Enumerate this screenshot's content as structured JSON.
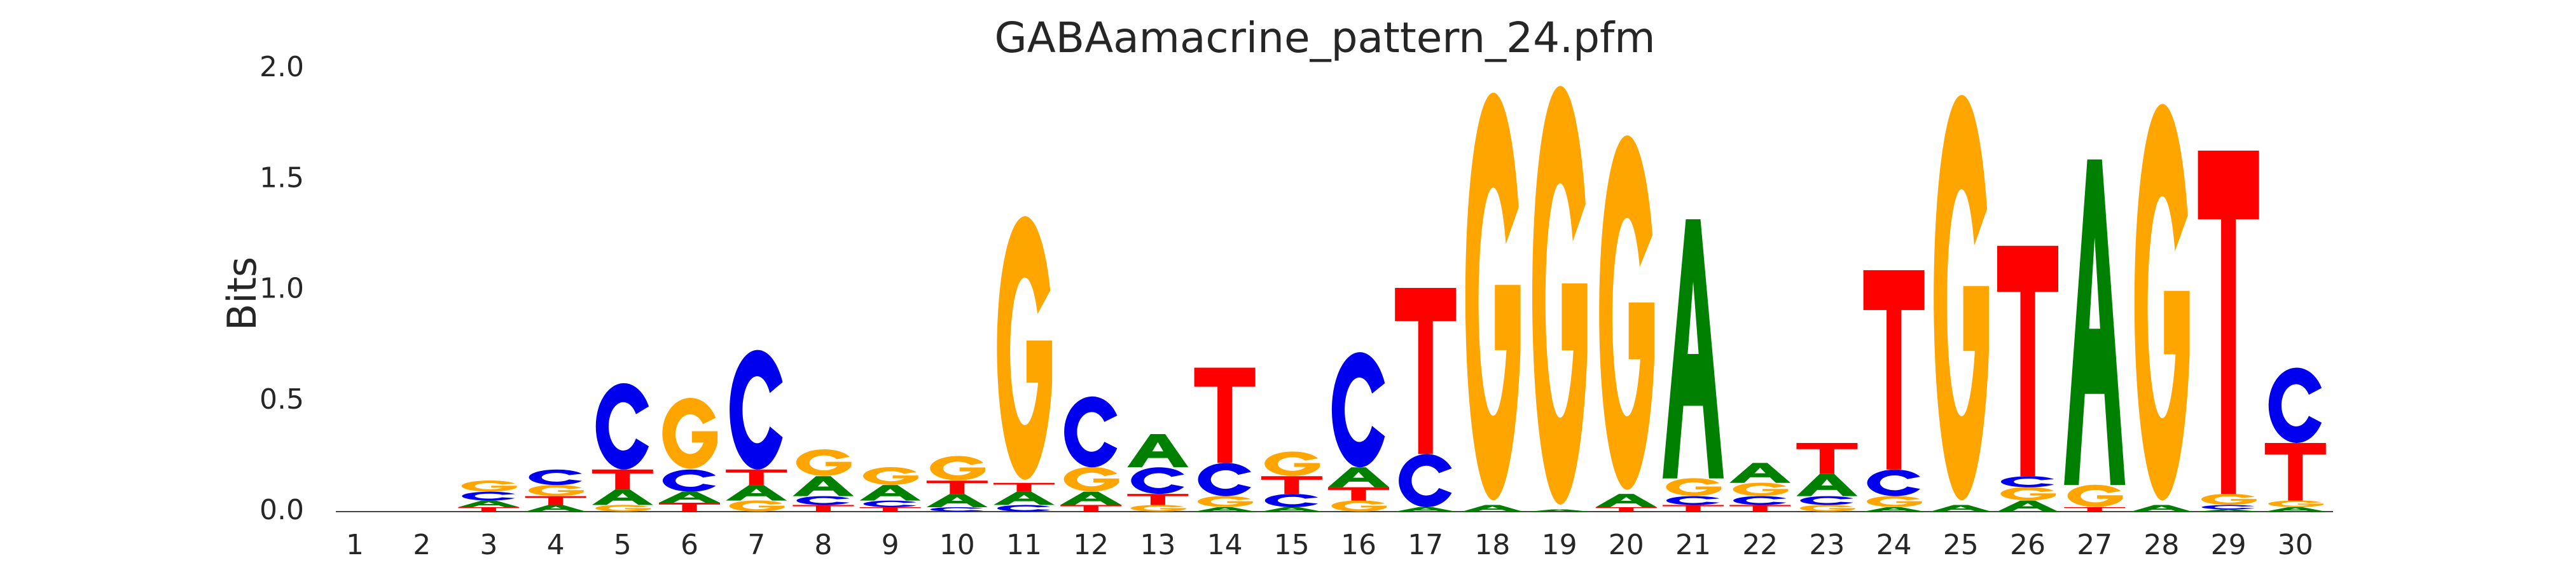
{
  "chart_data": {
    "type": "sequence_logo",
    "title": "GABAamacrine_pattern_24.pfm",
    "xlabel": "",
    "ylabel": "Bits",
    "ylim": [
      0,
      2.0
    ],
    "xticks": [
      1,
      2,
      3,
      4,
      5,
      6,
      7,
      8,
      9,
      10,
      11,
      12,
      13,
      14,
      15,
      16,
      17,
      18,
      19,
      20,
      21,
      22,
      23,
      24,
      25,
      26,
      27,
      28,
      29,
      30
    ],
    "yticks": [
      "0.0",
      "0.5",
      "1.0",
      "1.5",
      "2.0"
    ],
    "colors": {
      "A": "#008000",
      "C": "#0000ee",
      "G": "#ffa500",
      "T": "#ff0000"
    },
    "positions": [
      {
        "pos": 1,
        "letters": []
      },
      {
        "pos": 2,
        "letters": []
      },
      {
        "pos": 3,
        "letters": [
          [
            "T",
            0.02
          ],
          [
            "A",
            0.03
          ],
          [
            "C",
            0.04
          ],
          [
            "G",
            0.05
          ]
        ]
      },
      {
        "pos": 4,
        "letters": [
          [
            "A",
            0.03
          ],
          [
            "T",
            0.04
          ],
          [
            "G",
            0.05
          ],
          [
            "C",
            0.07
          ]
        ]
      },
      {
        "pos": 5,
        "letters": [
          [
            "G",
            0.03
          ],
          [
            "A",
            0.07
          ],
          [
            "T",
            0.09
          ],
          [
            "C",
            0.39
          ]
        ]
      },
      {
        "pos": 6,
        "letters": [
          [
            "T",
            0.04
          ],
          [
            "A",
            0.05
          ],
          [
            "C",
            0.1
          ],
          [
            "G",
            0.32
          ]
        ]
      },
      {
        "pos": 7,
        "letters": [
          [
            "G",
            0.05
          ],
          [
            "A",
            0.07
          ],
          [
            "T",
            0.07
          ],
          [
            "C",
            0.54
          ]
        ]
      },
      {
        "pos": 8,
        "letters": [
          [
            "T",
            0.03
          ],
          [
            "C",
            0.04
          ],
          [
            "A",
            0.09
          ],
          [
            "G",
            0.12
          ]
        ]
      },
      {
        "pos": 9,
        "letters": [
          [
            "T",
            0.02
          ],
          [
            "C",
            0.03
          ],
          [
            "A",
            0.07
          ],
          [
            "G",
            0.08
          ]
        ]
      },
      {
        "pos": 10,
        "letters": [
          [
            "C",
            0.02
          ],
          [
            "A",
            0.06
          ],
          [
            "T",
            0.06
          ],
          [
            "G",
            0.11
          ]
        ]
      },
      {
        "pos": 11,
        "letters": [
          [
            "C",
            0.03
          ],
          [
            "A",
            0.06
          ],
          [
            "T",
            0.04
          ],
          [
            "G",
            1.19
          ]
        ]
      },
      {
        "pos": 12,
        "letters": [
          [
            "T",
            0.03
          ],
          [
            "A",
            0.06
          ],
          [
            "G",
            0.11
          ],
          [
            "C",
            0.32
          ]
        ]
      },
      {
        "pos": 13,
        "letters": [
          [
            "G",
            0.03
          ],
          [
            "T",
            0.05
          ],
          [
            "C",
            0.12
          ],
          [
            "A",
            0.15
          ]
        ]
      },
      {
        "pos": 14,
        "letters": [
          [
            "A",
            0.02
          ],
          [
            "G",
            0.05
          ],
          [
            "C",
            0.15
          ],
          [
            "T",
            0.43
          ]
        ]
      },
      {
        "pos": 15,
        "letters": [
          [
            "A",
            0.02
          ],
          [
            "C",
            0.06
          ],
          [
            "T",
            0.08
          ],
          [
            "G",
            0.11
          ]
        ]
      },
      {
        "pos": 16,
        "letters": [
          [
            "G",
            0.05
          ],
          [
            "T",
            0.06
          ],
          [
            "A",
            0.09
          ],
          [
            "C",
            0.52
          ]
        ]
      },
      {
        "pos": 17,
        "letters": [
          [
            "A",
            0.02
          ],
          [
            "C",
            0.24
          ],
          [
            "T",
            0.75
          ]
        ]
      },
      {
        "pos": 18,
        "letters": [
          [
            "A",
            0.03
          ],
          [
            "G",
            1.84
          ]
        ]
      },
      {
        "pos": 19,
        "letters": [
          [
            "A",
            0.01
          ],
          [
            "G",
            1.89
          ]
        ]
      },
      {
        "pos": 20,
        "letters": [
          [
            "T",
            0.02
          ],
          [
            "A",
            0.06
          ],
          [
            "G",
            1.6
          ]
        ]
      },
      {
        "pos": 21,
        "letters": [
          [
            "T",
            0.03
          ],
          [
            "C",
            0.04
          ],
          [
            "G",
            0.08
          ],
          [
            "A",
            1.17
          ]
        ]
      },
      {
        "pos": 22,
        "letters": [
          [
            "T",
            0.03
          ],
          [
            "C",
            0.04
          ],
          [
            "G",
            0.06
          ],
          [
            "A",
            0.09
          ]
        ]
      },
      {
        "pos": 23,
        "letters": [
          [
            "G",
            0.03
          ],
          [
            "C",
            0.04
          ],
          [
            "A",
            0.1
          ],
          [
            "T",
            0.14
          ]
        ]
      },
      {
        "pos": 24,
        "letters": [
          [
            "A",
            0.02
          ],
          [
            "G",
            0.05
          ],
          [
            "C",
            0.12
          ],
          [
            "T",
            0.9
          ]
        ]
      },
      {
        "pos": 25,
        "letters": [
          [
            "A",
            0.03
          ],
          [
            "G",
            1.83
          ]
        ]
      },
      {
        "pos": 26,
        "letters": [
          [
            "A",
            0.05
          ],
          [
            "G",
            0.06
          ],
          [
            "C",
            0.05
          ],
          [
            "T",
            1.04
          ]
        ]
      },
      {
        "pos": 27,
        "letters": [
          [
            "T",
            0.02
          ],
          [
            "G",
            0.1
          ],
          [
            "A",
            1.47
          ]
        ]
      },
      {
        "pos": 28,
        "letters": [
          [
            "A",
            0.03
          ],
          [
            "G",
            1.79
          ]
        ]
      },
      {
        "pos": 29,
        "letters": [
          [
            "A",
            0.01
          ],
          [
            "C",
            0.02
          ],
          [
            "G",
            0.05
          ],
          [
            "T",
            1.55
          ]
        ]
      },
      {
        "pos": 30,
        "letters": [
          [
            "A",
            0.02
          ],
          [
            "G",
            0.03
          ],
          [
            "T",
            0.26
          ],
          [
            "C",
            0.34
          ]
        ]
      }
    ]
  }
}
